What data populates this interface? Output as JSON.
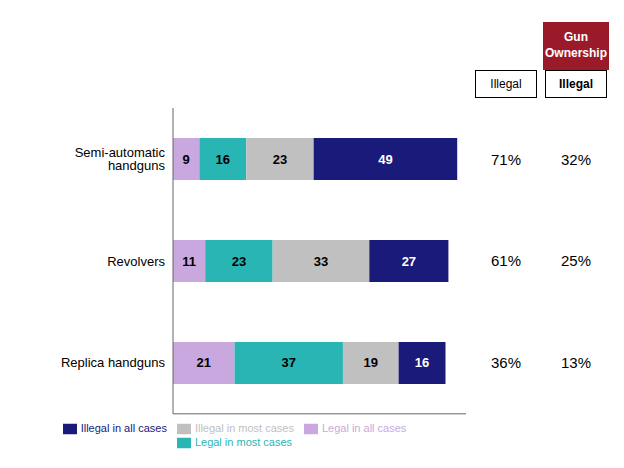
{
  "chart_data": {
    "type": "bar",
    "orientation": "horizontal",
    "stacked": true,
    "data_labels": true,
    "tick_labels": "y",
    "legend": "bottom",
    "categories": [
      "Semi-automatic handguns",
      "Revolvers",
      "Replica handguns"
    ],
    "series": [
      {
        "name": "Legal in all cases",
        "color": "#c9a8e0",
        "values": [
          9,
          11,
          21
        ]
      },
      {
        "name": "Legal in most cases",
        "color": "#2ab5b5",
        "values": [
          16,
          23,
          37
        ]
      },
      {
        "name": "Illegal in most cases",
        "color": "#c0c0c0",
        "values": [
          23,
          33,
          19
        ]
      },
      {
        "name": "Illegal in all cases",
        "color": "#1a1a7a",
        "values": [
          49,
          27,
          16
        ]
      }
    ],
    "xlim": [
      0,
      100
    ],
    "annotations": [
      {
        "header": "Illegal",
        "values": [
          71,
          61,
          36
        ],
        "value_labels": [
          "71%",
          "61%",
          "36%"
        ]
      },
      {
        "header": "Illegal",
        "title": "Gun\nOwnership",
        "color": "#9b1a2a",
        "values": [
          32,
          25,
          13
        ],
        "value_labels": [
          "32%",
          "25%",
          "13%"
        ]
      }
    ]
  }
}
